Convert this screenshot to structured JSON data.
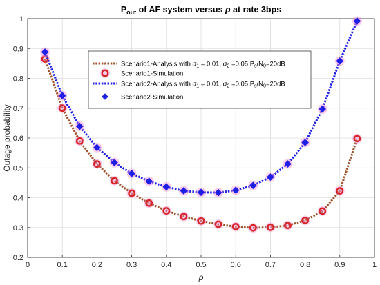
{
  "chart_data": {
    "type": "line",
    "title": {
      "main": "P",
      "sub": "out",
      "rest": " of AF system versus ",
      "symbol": "ρ",
      "tail": " at rate 3bps"
    },
    "xlabel": "ρ",
    "ylabel": "Outage probability",
    "xlim": [
      0,
      1
    ],
    "ylim": [
      0.2,
      1
    ],
    "xticks": [
      "0",
      "0.1",
      "0.2",
      "0.3",
      "0.4",
      "0.5",
      "0.6",
      "0.7",
      "0.8",
      "0.9",
      "1"
    ],
    "yticks": [
      "0.2",
      "0.3",
      "0.4",
      "0.5",
      "0.6",
      "0.7",
      "0.8",
      "0.9",
      "1"
    ],
    "grid": true,
    "legend_position": "top-center",
    "x": [
      0.05,
      0.1,
      0.15,
      0.2,
      0.25,
      0.3,
      0.35,
      0.4,
      0.45,
      0.5,
      0.55,
      0.6,
      0.65,
      0.7,
      0.75,
      0.8,
      0.85,
      0.9,
      0.95
    ],
    "series": [
      {
        "name": "Scenario1-Analysis with σ1 = 0.01, σ2 =0.05,Ps/N0=20dB",
        "legend": {
          "a": "Scenario1-Analysis with ",
          "s": "σ",
          "i1": "1",
          "b": " = 0.01, ",
          "i2": "2",
          "c": " =0.05,P",
          "i3": "s",
          "d": "/N",
          "i4": "0",
          "e": "=20dB"
        },
        "style": "dotted-line",
        "color": "#a0522d",
        "values": [
          0.865,
          0.7,
          0.59,
          0.513,
          0.457,
          0.415,
          0.382,
          0.356,
          0.337,
          0.322,
          0.311,
          0.303,
          0.299,
          0.301,
          0.307,
          0.324,
          0.355,
          0.423,
          0.598
        ]
      },
      {
        "name": "Scenario1-Simulation",
        "legend": {
          "a": "Scenario1-Simulation"
        },
        "style": "circle-marker",
        "color": "#d62728",
        "values": [
          0.865,
          0.7,
          0.59,
          0.513,
          0.457,
          0.415,
          0.382,
          0.356,
          0.337,
          0.322,
          0.311,
          0.303,
          0.299,
          0.301,
          0.307,
          0.324,
          0.355,
          0.423,
          0.598
        ]
      },
      {
        "name": "Scenario2-Analysis with σ1 = 0.01, σ2 =0.05,Ps/N0=20dB",
        "legend": {
          "a": "Scenario2-Analysis with ",
          "s": "σ",
          "i1": "1",
          "b": " = 0.01, ",
          "i2": "2",
          "c": " =0.05,P",
          "i3": "s",
          "d": "/N",
          "i4": "0",
          "e": "=20dB"
        },
        "style": "dotted-line",
        "color": "#1f1fe6",
        "values": [
          0.888,
          0.742,
          0.639,
          0.568,
          0.518,
          0.481,
          0.455,
          0.436,
          0.423,
          0.418,
          0.417,
          0.425,
          0.441,
          0.469,
          0.513,
          0.585,
          0.697,
          0.858,
          0.992
        ]
      },
      {
        "name": "Scenario2-Simulation",
        "legend": {
          "a": "Scenario2-Simulation"
        },
        "style": "diamond-marker",
        "color": "#1f1fe6",
        "values": [
          0.888,
          0.742,
          0.639,
          0.568,
          0.518,
          0.481,
          0.455,
          0.436,
          0.423,
          0.418,
          0.417,
          0.425,
          0.441,
          0.469,
          0.513,
          0.585,
          0.697,
          0.858,
          0.992
        ]
      }
    ]
  }
}
